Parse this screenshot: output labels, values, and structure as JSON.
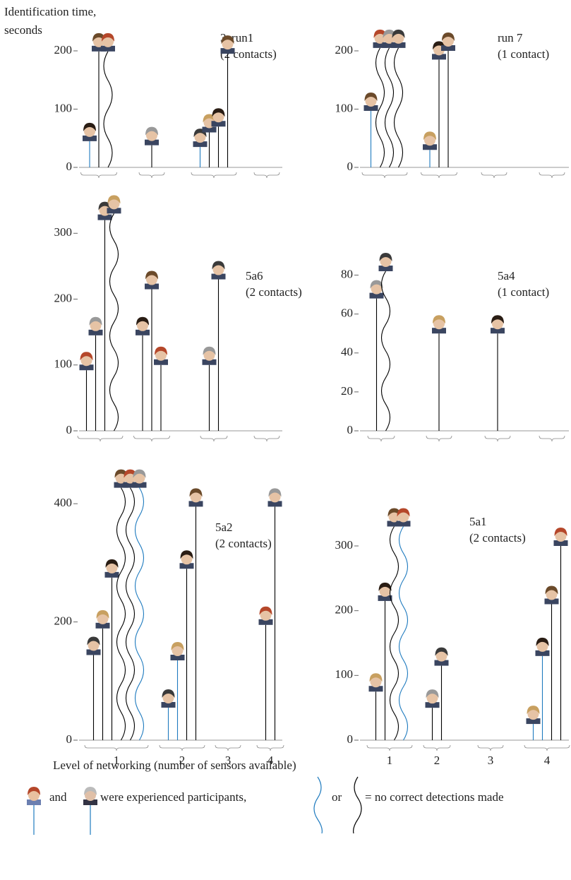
{
  "figure": {
    "y_label": [
      "Identification time,",
      "seconds"
    ],
    "x_label": "Level of networking (number of sensors available)",
    "legend": {
      "and": "and",
      "experienced": "were experienced participants,",
      "or": "or",
      "no_detection": "= no correct detections made"
    }
  },
  "chart_data": [
    {
      "type": "stem",
      "title": "3arun1",
      "subtitle": "(2 contacts)",
      "ylim": [
        0,
        240
      ],
      "yticks": [
        0,
        100,
        200
      ],
      "stems": [
        {
          "level": 1,
          "value": 45,
          "color": "#1f7bbf",
          "wavy": false
        },
        {
          "level": 1,
          "value": 199,
          "color": "#000000",
          "wavy": false
        },
        {
          "level": 1,
          "value": 199,
          "color": "#000000",
          "wavy": true
        },
        {
          "level": 2,
          "value": 38,
          "color": "#000000",
          "wavy": false
        },
        {
          "level": 3,
          "value": 35,
          "color": "#1f7bbf",
          "wavy": false
        },
        {
          "level": 3,
          "value": 60,
          "color": "#000000",
          "wavy": false
        },
        {
          "level": 3,
          "value": 70,
          "color": "#000000",
          "wavy": false
        },
        {
          "level": 3,
          "value": 195,
          "color": "#000000",
          "wavy": false
        }
      ]
    },
    {
      "type": "stem",
      "title": "run 7",
      "subtitle": "(1 contact)",
      "ylim": [
        0,
        240
      ],
      "yticks": [
        0,
        100,
        200
      ],
      "stems": [
        {
          "level": 1,
          "value": 97,
          "color": "#1f7bbf",
          "wavy": false
        },
        {
          "level": 1,
          "value": 205,
          "color": "#000000",
          "wavy": true
        },
        {
          "level": 1,
          "value": 205,
          "color": "#000000",
          "wavy": true
        },
        {
          "level": 1,
          "value": 205,
          "color": "#000000",
          "wavy": true
        },
        {
          "level": 2,
          "value": 30,
          "color": "#1f7bbf",
          "wavy": false
        },
        {
          "level": 2,
          "value": 185,
          "color": "#000000",
          "wavy": false
        },
        {
          "level": 2,
          "value": 200,
          "color": "#000000",
          "wavy": false
        }
      ]
    },
    {
      "type": "stem",
      "title": "5a6",
      "subtitle": "(2 contacts)",
      "ylim": [
        0,
        340
      ],
      "yticks": [
        0,
        100,
        200,
        300
      ],
      "stems": [
        {
          "level": 1,
          "value": 92,
          "color": "#000000",
          "wavy": false
        },
        {
          "level": 1,
          "value": 145,
          "color": "#000000",
          "wavy": false
        },
        {
          "level": 1,
          "value": 320,
          "color": "#000000",
          "wavy": false
        },
        {
          "level": 1,
          "value": 330,
          "color": "#000000",
          "wavy": true
        },
        {
          "level": 2,
          "value": 145,
          "color": "#000000",
          "wavy": false
        },
        {
          "level": 2,
          "value": 215,
          "color": "#000000",
          "wavy": false
        },
        {
          "level": 2,
          "value": 100,
          "color": "#000000",
          "wavy": false
        },
        {
          "level": 3,
          "value": 100,
          "color": "#000000",
          "wavy": false
        },
        {
          "level": 3,
          "value": 230,
          "color": "#000000",
          "wavy": false
        }
      ]
    },
    {
      "type": "stem",
      "title": "5a4",
      "subtitle": "(1 contact)",
      "ylim": [
        0,
        86
      ],
      "yticks": [
        0,
        20,
        40,
        60,
        80
      ],
      "stems": [
        {
          "level": 1,
          "value": 68,
          "color": "#000000",
          "wavy": false
        },
        {
          "level": 1,
          "value": 82,
          "color": "#000000",
          "wavy": true
        },
        {
          "level": 2,
          "value": 50,
          "color": "#000000",
          "wavy": false
        },
        {
          "level": 3,
          "value": 50,
          "color": "#000000",
          "wavy": false
        }
      ]
    },
    {
      "type": "stem",
      "title": "5a2",
      "subtitle": "(2 contacts)",
      "ylim": [
        0,
        460
      ],
      "yticks": [
        0,
        200,
        400
      ],
      "categories": [
        "1",
        "2",
        "3",
        "4"
      ],
      "stems": [
        {
          "level": 1,
          "value": 144,
          "color": "#000000",
          "wavy": false
        },
        {
          "level": 1,
          "value": 189,
          "color": "#000000",
          "wavy": false
        },
        {
          "level": 1,
          "value": 275,
          "color": "#000000",
          "wavy": false
        },
        {
          "level": 1,
          "value": 427,
          "color": "#000000",
          "wavy": true
        },
        {
          "level": 1,
          "value": 427,
          "color": "#000000",
          "wavy": true
        },
        {
          "level": 1,
          "value": 427,
          "color": "#1f7bbf",
          "wavy": true
        },
        {
          "level": 2,
          "value": 55,
          "color": "#1f7bbf",
          "wavy": false
        },
        {
          "level": 2,
          "value": 135,
          "color": "#1f7bbf",
          "wavy": false
        },
        {
          "level": 2,
          "value": 290,
          "color": "#000000",
          "wavy": false
        },
        {
          "level": 2,
          "value": 395,
          "color": "#000000",
          "wavy": false
        },
        {
          "level": 4,
          "value": 195,
          "color": "#000000",
          "wavy": false
        },
        {
          "level": 4,
          "value": 395,
          "color": "#000000",
          "wavy": false
        }
      ]
    },
    {
      "type": "stem",
      "title": "5a1",
      "subtitle": "(2 contacts)",
      "ylim": [
        0,
        360
      ],
      "yticks": [
        0,
        100,
        200,
        300
      ],
      "categories": [
        "1",
        "2",
        "3",
        "4"
      ],
      "stems": [
        {
          "level": 1,
          "value": 75,
          "color": "#000000",
          "wavy": false
        },
        {
          "level": 1,
          "value": 215,
          "color": "#000000",
          "wavy": false
        },
        {
          "level": 1,
          "value": 330,
          "color": "#000000",
          "wavy": true
        },
        {
          "level": 1,
          "value": 330,
          "color": "#1f7bbf",
          "wavy": true
        },
        {
          "level": 2,
          "value": 50,
          "color": "#000000",
          "wavy": false
        },
        {
          "level": 2,
          "value": 115,
          "color": "#000000",
          "wavy": false
        },
        {
          "level": 4,
          "value": 25,
          "color": "#1f7bbf",
          "wavy": false
        },
        {
          "level": 4,
          "value": 130,
          "color": "#1f7bbf",
          "wavy": false
        },
        {
          "level": 4,
          "value": 210,
          "color": "#000000",
          "wavy": false
        },
        {
          "level": 4,
          "value": 300,
          "color": "#000000",
          "wavy": false
        }
      ]
    }
  ]
}
